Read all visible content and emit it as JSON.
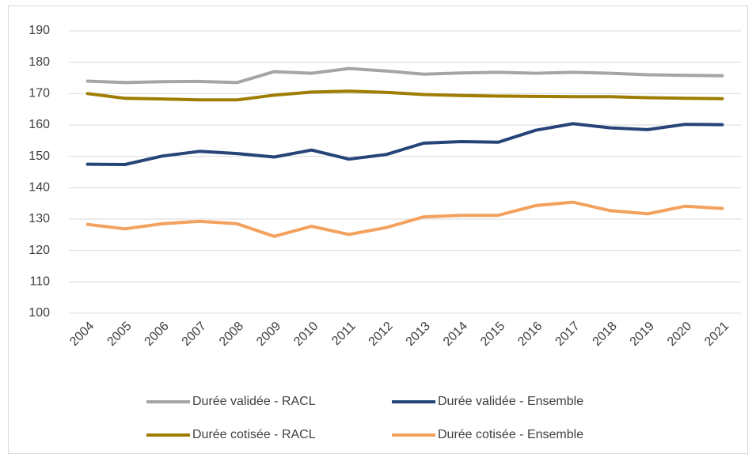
{
  "chart_data": {
    "type": "line",
    "categories": [
      "2004",
      "2005",
      "2006",
      "2007",
      "2008",
      "2009",
      "2010",
      "2011",
      "2012",
      "2013",
      "2014",
      "2015",
      "2016",
      "2017",
      "2018",
      "2019",
      "2020",
      "2021"
    ],
    "series": [
      {
        "name": "Durée validée - RACL",
        "color": "#a5a5a5",
        "values": [
          174,
          173.5,
          173.8,
          173.9,
          173.5,
          177,
          176.5,
          178,
          177.2,
          176.2,
          176.6,
          176.8,
          176.5,
          176.8,
          176.5,
          176,
          175.8,
          175.7
        ]
      },
      {
        "name": "Durée validée - Ensemble",
        "color": "#264478",
        "values": [
          147.5,
          147.4,
          150.1,
          151.6,
          150.9,
          149.8,
          152,
          149.1,
          150.6,
          154.2,
          154.7,
          154.5,
          158.3,
          160.4,
          159.1,
          158.5,
          160.2,
          160.1
        ]
      },
      {
        "name": "Durée cotisée - RACL",
        "color": "#9e7d00",
        "values": [
          170,
          168.5,
          168.3,
          168,
          168,
          169.5,
          170.5,
          170.8,
          170.4,
          169.7,
          169.4,
          169.2,
          169.1,
          169,
          169,
          168.7,
          168.5,
          168.4
        ]
      },
      {
        "name": "Durée cotisée - Ensemble",
        "color": "#f4a15d",
        "values": [
          128.3,
          126.9,
          128.5,
          129.3,
          128.5,
          124.5,
          127.7,
          125.1,
          127.3,
          130.7,
          131.2,
          131.2,
          134.3,
          135.4,
          132.7,
          131.7,
          134.1,
          133.4
        ]
      }
    ],
    "ylim": [
      100,
      190
    ],
    "yticks": [
      100,
      110,
      120,
      130,
      140,
      150,
      160,
      170,
      180,
      190
    ],
    "grid": true
  }
}
